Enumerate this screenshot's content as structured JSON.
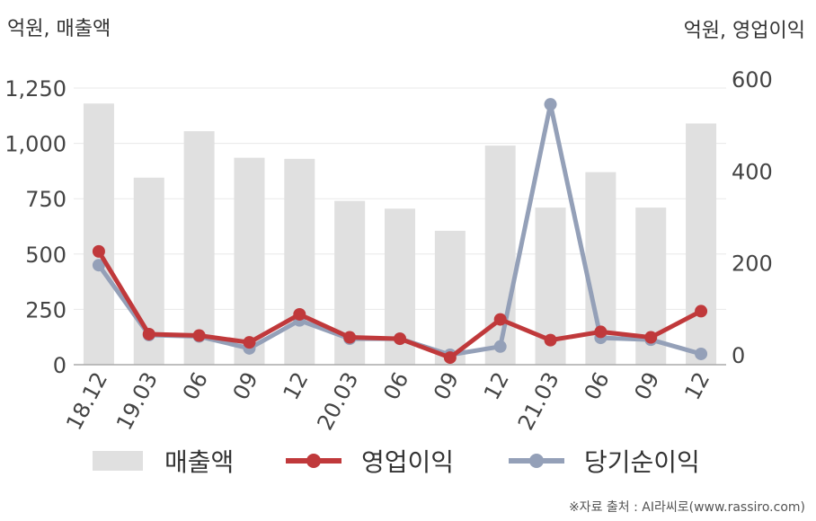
{
  "chart_data": {
    "type": "bar+line",
    "left_unit_label": "억원, 매출액",
    "right_unit_label": "억원, 영업이익",
    "categories": [
      "18.12",
      "19.03",
      "06",
      "09",
      "12",
      "20.03",
      "06",
      "09",
      "12",
      "21.03",
      "06",
      "09",
      "12"
    ],
    "left_axis": {
      "ylim": [
        0,
        1250
      ],
      "ticks": [
        0,
        250,
        500,
        750,
        1000,
        1250
      ],
      "tick_labels": [
        "0",
        "250",
        "500",
        "750",
        "1,000",
        "1,250"
      ]
    },
    "right_axis": {
      "ylim": [
        -20,
        600
      ],
      "ticks": [
        0,
        200,
        400,
        600
      ],
      "tick_labels": [
        "0",
        "200",
        "400",
        "600"
      ]
    },
    "grid": true,
    "legend_position": "bottom",
    "series": [
      {
        "name": "매출액",
        "type": "bar",
        "axis": "left",
        "color": "#e0e0e0",
        "values": [
          1180,
          845,
          1055,
          935,
          930,
          740,
          705,
          605,
          990,
          710,
          870,
          710,
          1090
        ]
      },
      {
        "name": "영업이익",
        "type": "line",
        "axis": "right",
        "color": "#c0393b",
        "values": [
          225,
          45,
          42,
          27,
          88,
          38,
          35,
          -6,
          77,
          32,
          50,
          38,
          95
        ]
      },
      {
        "name": "당기순이익",
        "type": "line",
        "axis": "right",
        "color": "#94a0b8",
        "values": [
          195,
          43,
          40,
          14,
          75,
          35,
          35,
          0,
          18,
          545,
          37,
          33,
          2
        ]
      }
    ]
  },
  "source": "※자료 출처 : AI라씨로(www.rassiro.com)"
}
